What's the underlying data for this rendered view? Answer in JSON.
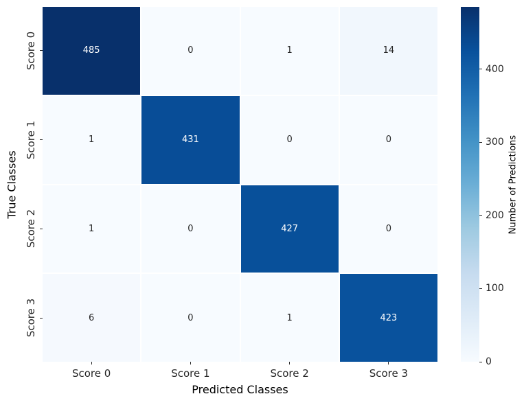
{
  "chart_data": {
    "type": "heatmap",
    "title": "",
    "xlabel": "Predicted Classes",
    "ylabel": "True Classes",
    "x_categories": [
      "Score 0",
      "Score 1",
      "Score 2",
      "Score 3"
    ],
    "y_categories": [
      "Score 0",
      "Score 1",
      "Score 2",
      "Score 3"
    ],
    "values": [
      [
        485,
        0,
        1,
        14
      ],
      [
        1,
        431,
        0,
        0
      ],
      [
        1,
        0,
        427,
        0
      ],
      [
        6,
        0,
        1,
        423
      ]
    ],
    "colormap": "Blues",
    "vmin": 0,
    "vmax": 485,
    "grid_gap_color": "#ffffff",
    "colorbar": {
      "label": "Number of Predictions",
      "ticks": [
        0,
        100,
        200,
        300,
        400
      ],
      "min_color": "#f7fbff",
      "max_color": "#08306b"
    },
    "legend": null
  },
  "colors": {
    "figure_background": "#ffffff",
    "annotation_on_dark": "#ffffff",
    "annotation_on_light": "#262626",
    "tick_text": "#262626",
    "axis_label_text": "#000000"
  }
}
